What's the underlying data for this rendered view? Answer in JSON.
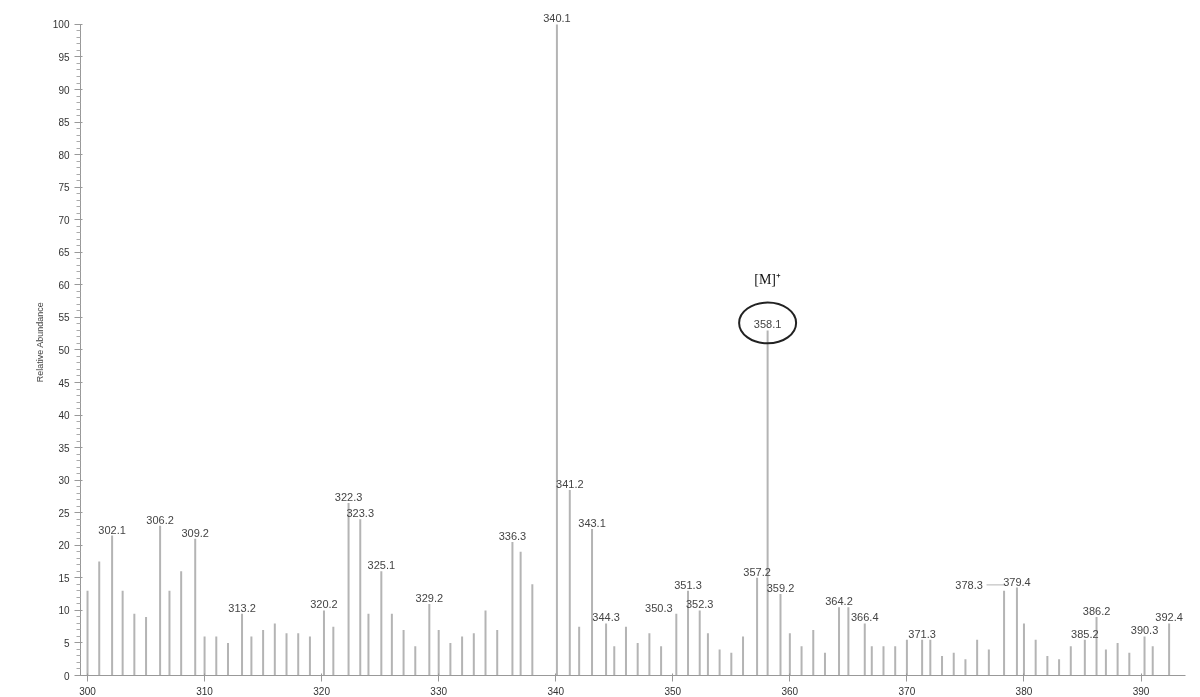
{
  "chart_data": {
    "type": "bar",
    "ylabel": "Relative Abundance",
    "color": "#b4b4b4",
    "grid": false,
    "x": [
      300,
      301,
      302.1,
      303,
      304,
      305,
      306.2,
      307,
      308,
      309.2,
      310,
      311,
      312,
      313.2,
      314,
      315,
      316,
      317,
      318,
      319,
      320.2,
      321,
      322.3,
      323.3,
      324,
      325.1,
      326,
      327,
      328,
      329.2,
      330,
      331,
      332,
      333,
      334,
      335,
      336.3,
      337,
      338,
      340.1,
      341.2,
      342,
      343.1,
      344.3,
      345,
      346,
      347,
      348,
      349,
      350.3,
      351.3,
      352.3,
      353,
      354,
      355,
      356,
      357.2,
      358.1,
      359.2,
      360,
      361,
      362,
      363,
      364.2,
      365,
      366.4,
      367,
      368,
      369,
      370,
      371.3,
      372,
      373,
      374,
      375,
      376,
      377,
      378.3,
      379.4,
      380,
      381,
      382,
      383,
      384,
      385.2,
      386.2,
      387,
      388,
      389,
      390.3,
      391,
      392.4
    ],
    "values": [
      13,
      17.5,
      21.5,
      13,
      9.5,
      9,
      23,
      13,
      16,
      21,
      6,
      6,
      5,
      9.5,
      6,
      7,
      8,
      6.5,
      6.5,
      6,
      10,
      7.5,
      26.5,
      24,
      9.5,
      16,
      9.5,
      7,
      4.5,
      11,
      7,
      5,
      6,
      6.5,
      10,
      7,
      20.5,
      19,
      14,
      100,
      28.5,
      7.5,
      22.5,
      8,
      4.5,
      7.5,
      5,
      6.5,
      4.5,
      9.5,
      13,
      10,
      6.5,
      4,
      3.5,
      6,
      15,
      53,
      12.5,
      6.5,
      4.5,
      7,
      3.5,
      10.5,
      10.5,
      8,
      4.5,
      4.5,
      4.5,
      5.5,
      5.5,
      5.5,
      3,
      3.5,
      2.5,
      5.5,
      4,
      13,
      13.5,
      8,
      5.5,
      3,
      2.5,
      4.5,
      5.5,
      9,
      4,
      5,
      3.5,
      6,
      4.5,
      8
    ],
    "xlim": [
      299.4,
      393.8
    ],
    "ylim": [
      0,
      100
    ],
    "xticks": [
      300,
      310,
      320,
      330,
      340,
      350,
      360,
      370,
      380,
      390
    ],
    "yticks": [
      0,
      5,
      10,
      15,
      20,
      25,
      30,
      35,
      40,
      45,
      50,
      55,
      60,
      65,
      70,
      75,
      80,
      85,
      90,
      95,
      100
    ],
    "annotations": [
      {
        "text": "302.1",
        "x": 302.1,
        "y": 21.5
      },
      {
        "text": "306.2",
        "x": 306.2,
        "y": 23
      },
      {
        "text": "309.2",
        "x": 309.2,
        "y": 21
      },
      {
        "text": "313.2",
        "x": 313.2,
        "y": 9.5
      },
      {
        "text": "320.2",
        "x": 320.2,
        "y": 10
      },
      {
        "text": "322.3",
        "x": 322.3,
        "y": 26.5
      },
      {
        "text": "323.3",
        "x": 323.3,
        "y": 24
      },
      {
        "text": "325.1",
        "x": 325.1,
        "y": 16
      },
      {
        "text": "329.2",
        "x": 329.2,
        "y": 11
      },
      {
        "text": "336.3",
        "x": 336.3,
        "y": 20.5
      },
      {
        "text": "340.1",
        "x": 340.1,
        "y": 100
      },
      {
        "text": "341.2",
        "x": 341.2,
        "y": 28.5
      },
      {
        "text": "343.1",
        "x": 343.1,
        "y": 22.5
      },
      {
        "text": "344.3",
        "x": 344.3,
        "y": 8
      },
      {
        "text": "350.3",
        "x": 350.3,
        "y": 9.5
      },
      {
        "text": "351.3",
        "x": 351.3,
        "y": 13
      },
      {
        "text": "352.3",
        "x": 352.3,
        "y": 10
      },
      {
        "text": "357.2",
        "x": 357.2,
        "y": 15
      },
      {
        "text": "358.1",
        "x": 358.1,
        "y": 53
      },
      "[M]⁺",
      {
        "text": "359.2",
        "x": 359.2,
        "y": 12.5
      },
      {
        "text": "364.2",
        "x": 364.2,
        "y": 10.5
      },
      {
        "text": "366.4",
        "x": 366.4,
        "y": 8
      },
      {
        "text": "371.3",
        "x": 371.3,
        "y": 5.5
      },
      {
        "text": "378.3",
        "x": 378.3,
        "y": 13
      },
      {
        "text": "379.4",
        "x": 379.4,
        "y": 13.5
      },
      {
        "text": "385.2",
        "x": 385.2,
        "y": 5.5
      },
      {
        "text": "386.2",
        "x": 386.2,
        "y": 9
      },
      {
        "text": "390.3",
        "x": 390.3,
        "y": 6
      },
      {
        "text": "392.4",
        "x": 392.4,
        "y": 8
      }
    ]
  }
}
